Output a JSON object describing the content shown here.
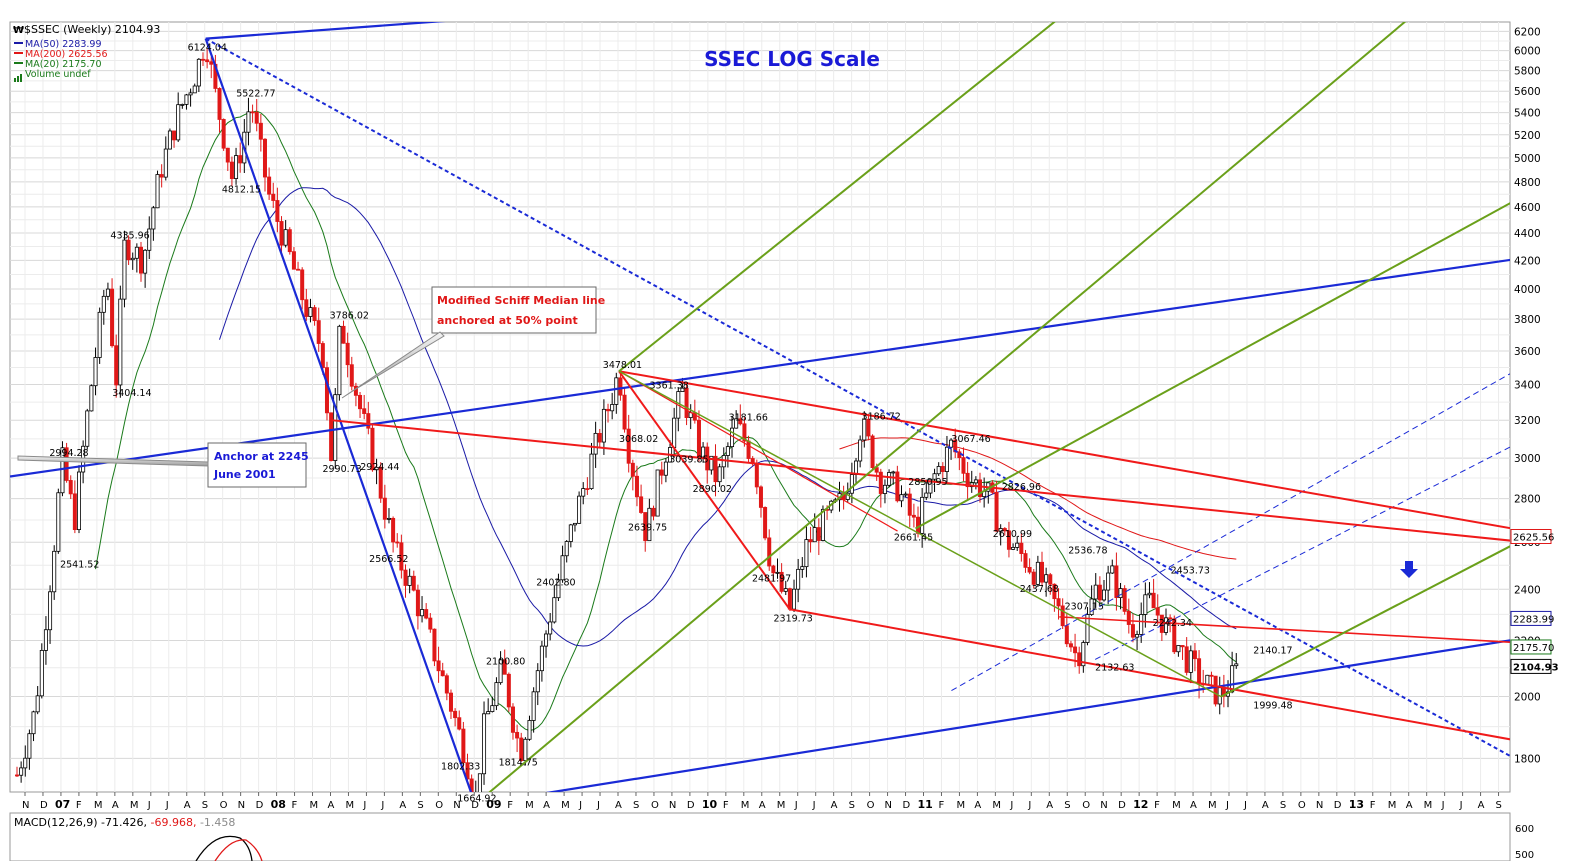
{
  "header": {
    "symbol_line": "$SSEC (Weekly) 2104.93",
    "legend": [
      {
        "label": "MA(50) 2283.99",
        "color": "#1a1aa6"
      },
      {
        "label": "MA(200) 2625.56",
        "color": "#e01818"
      },
      {
        "label": "MA(20) 2175.70",
        "color": "#1a7a1a"
      },
      {
        "label": "Volume undef",
        "color": "#1a7a1a"
      }
    ]
  },
  "chart_data": {
    "type": "candlestick",
    "title": "SSEC LOG Scale",
    "scale": "log",
    "ylim": [
      1700,
      6300
    ],
    "y_ticks": [
      1800,
      2000,
      2200,
      2400,
      2600,
      2800,
      3000,
      3200,
      3400,
      3600,
      3800,
      4000,
      4200,
      4400,
      4600,
      4800,
      5000,
      5200,
      5400,
      5600,
      5800,
      6000,
      6200
    ],
    "x_labels": [
      "N",
      "D",
      "07",
      "F",
      "M",
      "A",
      "M",
      "J",
      "J",
      "A",
      "S",
      "O",
      "N",
      "D",
      "08",
      "F",
      "M",
      "A",
      "M",
      "J",
      "J",
      "A",
      "S",
      "O",
      "N",
      "D",
      "09",
      "F",
      "M",
      "A",
      "M",
      "J",
      "J",
      "A",
      "S",
      "O",
      "N",
      "D",
      "10",
      "F",
      "M",
      "A",
      "M",
      "J",
      "J",
      "A",
      "S",
      "O",
      "N",
      "D",
      "11",
      "F",
      "M",
      "A",
      "M",
      "J",
      "J",
      "A",
      "S",
      "O",
      "N",
      "D",
      "12",
      "F",
      "M",
      "A",
      "M",
      "J",
      "J",
      "A",
      "S",
      "O",
      "N",
      "D",
      "13",
      "F",
      "M",
      "A",
      "M",
      "J",
      "J",
      "A",
      "S"
    ],
    "x_range_months": [
      0,
      82
    ],
    "series_path": [
      [
        0,
        1750
      ],
      [
        1,
        1950
      ],
      [
        2,
        2541.52
      ],
      [
        2.5,
        2994.28
      ],
      [
        3.2,
        2700
      ],
      [
        4,
        3300
      ],
      [
        5,
        4100
      ],
      [
        5.5,
        3404.14
      ],
      [
        6,
        4335.96
      ],
      [
        7,
        4200
      ],
      [
        8,
        4900
      ],
      [
        9,
        5400
      ],
      [
        10,
        5800
      ],
      [
        10.5,
        6124.04
      ],
      [
        11,
        5600
      ],
      [
        12,
        4812.15
      ],
      [
        12.5,
        5100
      ],
      [
        13,
        5522.77
      ],
      [
        14,
        4700
      ],
      [
        15,
        4300
      ],
      [
        16,
        3900
      ],
      [
        17,
        3600
      ],
      [
        17.5,
        2990.73
      ],
      [
        18,
        3786.02
      ],
      [
        19,
        3300
      ],
      [
        20,
        2924.44
      ],
      [
        21,
        2566.52
      ],
      [
        22,
        2400
      ],
      [
        23,
        2200
      ],
      [
        24,
        2000
      ],
      [
        25,
        1802.33
      ],
      [
        25.5,
        1664.92
      ],
      [
        26,
        1900
      ],
      [
        27,
        2100.8
      ],
      [
        28,
        1814.75
      ],
      [
        29,
        2100
      ],
      [
        30,
        2402.8
      ],
      [
        31,
        2700
      ],
      [
        32,
        3000
      ],
      [
        33,
        3300
      ],
      [
        33.5,
        3478.01
      ],
      [
        34,
        3068.02
      ],
      [
        35,
        2639.75
      ],
      [
        36,
        3000
      ],
      [
        37,
        3361.38
      ],
      [
        38,
        3039.85
      ],
      [
        39,
        2890.02
      ],
      [
        40,
        3181.66
      ],
      [
        41,
        3000
      ],
      [
        42,
        2481.97
      ],
      [
        43,
        2319.73
      ],
      [
        44,
        2600
      ],
      [
        45,
        2700
      ],
      [
        46,
        2800
      ],
      [
        47,
        3186.72
      ],
      [
        48,
        2900
      ],
      [
        49,
        2850.95
      ],
      [
        50,
        2661.45
      ],
      [
        51,
        2900
      ],
      [
        52,
        3067.46
      ],
      [
        53,
        2900
      ],
      [
        54,
        2826.96
      ],
      [
        55,
        2610.99
      ],
      [
        56,
        2536.78
      ],
      [
        57,
        2437.68
      ],
      [
        58,
        2307.15
      ],
      [
        59,
        2132.63
      ],
      [
        60,
        2400
      ],
      [
        61,
        2453.73
      ],
      [
        62,
        2242.34
      ],
      [
        63,
        2350
      ],
      [
        64,
        2250
      ],
      [
        65,
        2140.17
      ],
      [
        66,
        2050
      ],
      [
        67,
        1999.48
      ],
      [
        68,
        2104.93
      ]
    ],
    "price_labels": [
      {
        "text": "6124.04",
        "x": 10.5,
        "y": 6124.04
      },
      {
        "text": "5522.77",
        "x": 13.2,
        "y": 5522.77
      },
      {
        "text": "4812.15",
        "x": 12.4,
        "y": 4812.15
      },
      {
        "text": "4335.96",
        "x": 6.2,
        "y": 4335.96
      },
      {
        "text": "3404.14",
        "x": 6.3,
        "y": 3404.14
      },
      {
        "text": "2994.28",
        "x": 2.8,
        "y": 2994.28
      },
      {
        "text": "2541.52",
        "x": 3.4,
        "y": 2541.52
      },
      {
        "text": "3786.02",
        "x": 18.4,
        "y": 3786.02
      },
      {
        "text": "2990.73",
        "x": 18.0,
        "y": 2990.73
      },
      {
        "text": "2924.44",
        "x": 20.1,
        "y": 2924.44
      },
      {
        "text": "2566.52",
        "x": 20.6,
        "y": 2566.52
      },
      {
        "text": "2402.80",
        "x": 29.9,
        "y": 2402.8
      },
      {
        "text": "2100.80",
        "x": 27.1,
        "y": 2100.8
      },
      {
        "text": "1814.75",
        "x": 27.8,
        "y": 1814.75
      },
      {
        "text": "1802.33",
        "x": 24.6,
        "y": 1802.33
      },
      {
        "text": "1664.92",
        "x": 25.5,
        "y": 1664.92
      },
      {
        "text": "3478.01",
        "x": 33.6,
        "y": 3478.01
      },
      {
        "text": "3361.38",
        "x": 36.2,
        "y": 3361.38
      },
      {
        "text": "3068.02",
        "x": 34.5,
        "y": 3068.02
      },
      {
        "text": "3039.85",
        "x": 37.3,
        "y": 3039.85
      },
      {
        "text": "2890.02",
        "x": 38.6,
        "y": 2890.02
      },
      {
        "text": "2639.75",
        "x": 35.0,
        "y": 2639.75
      },
      {
        "text": "3181.66",
        "x": 40.6,
        "y": 3181.66
      },
      {
        "text": "2481.97",
        "x": 41.9,
        "y": 2481.97
      },
      {
        "text": "2319.73",
        "x": 43.1,
        "y": 2319.73
      },
      {
        "text": "3186.72",
        "x": 48.0,
        "y": 3186.72
      },
      {
        "text": "2850.95",
        "x": 50.6,
        "y": 2850.95
      },
      {
        "text": "2661.45",
        "x": 49.8,
        "y": 2661.45
      },
      {
        "text": "3067.46",
        "x": 53.0,
        "y": 3067.46
      },
      {
        "text": "2826.96",
        "x": 55.8,
        "y": 2826.96
      },
      {
        "text": "2610.99",
        "x": 55.3,
        "y": 2610.99
      },
      {
        "text": "2536.78",
        "x": 59.5,
        "y": 2536.78
      },
      {
        "text": "2437.68",
        "x": 56.8,
        "y": 2437.68
      },
      {
        "text": "2307.15",
        "x": 59.3,
        "y": 2307.15
      },
      {
        "text": "2132.63",
        "x": 61.0,
        "y": 2132.63
      },
      {
        "text": "2453.73",
        "x": 65.2,
        "y": 2453.73
      },
      {
        "text": "2242.34",
        "x": 64.2,
        "y": 2242.34
      },
      {
        "text": "2140.17",
        "x": 69.8,
        "y": 2140.17
      },
      {
        "text": "1999.48",
        "x": 69.8,
        "y": 1999.48
      }
    ],
    "right_axis_labels": [
      {
        "text": "2625.56",
        "value": 2625.56,
        "color": "#e01818"
      },
      {
        "text": "2283.99",
        "value": 2283.99,
        "color": "#1a1aa6"
      },
      {
        "text": "2175.70",
        "value": 2175.7,
        "color": "#1a7a1a"
      },
      {
        "text": "2104.93",
        "value": 2104.93,
        "color": "#000000"
      }
    ],
    "annotations": [
      {
        "text_lines": [
          "Modified Schiff Median line",
          "anchored at 50% point"
        ],
        "color": "#e01818"
      },
      {
        "text_lines": [
          "Anchor at 2245",
          "June 2001"
        ],
        "color": "#1a1aa6"
      }
    ]
  },
  "macd": {
    "label_main": "MACD(12,26,9) -71.426, ",
    "label_signal": "-69.968, ",
    "label_hist": "-1.458",
    "ticks": [
      "600",
      "500"
    ]
  },
  "colors": {
    "up": "#000000",
    "down": "#e01818",
    "ma50": "#1a1aa6",
    "ma200": "#e01818",
    "ma20": "#1a7a1a",
    "blue_line": "#1a2ad6",
    "red_line": "#f01a1a",
    "green_line": "#6aa01a",
    "grid": "#d8d8d8"
  }
}
